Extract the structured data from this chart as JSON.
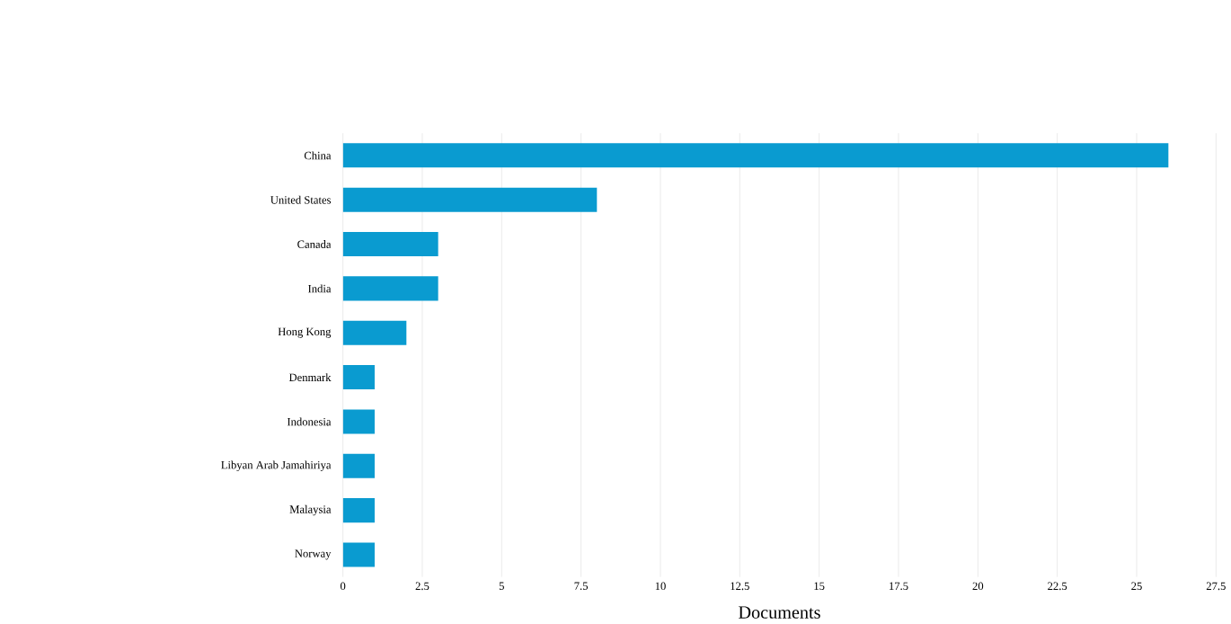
{
  "chart_data": {
    "type": "bar",
    "orientation": "horizontal",
    "xlabel": "Documents",
    "categories": [
      "China",
      "United States",
      "Canada",
      "India",
      "Hong Kong",
      "Denmark",
      "Indonesia",
      "Libyan Arab Jamahiriya",
      "Malaysia",
      "Norway"
    ],
    "values": [
      26,
      8,
      3,
      3,
      2,
      1,
      1,
      1,
      1,
      1
    ],
    "color": "#0a9bd0",
    "xlim": [
      0,
      27.5
    ],
    "xticks": [
      0,
      2.5,
      5,
      7.5,
      10,
      12.5,
      15,
      17.5,
      20,
      22.5,
      25,
      27.5
    ],
    "grid": "x"
  }
}
